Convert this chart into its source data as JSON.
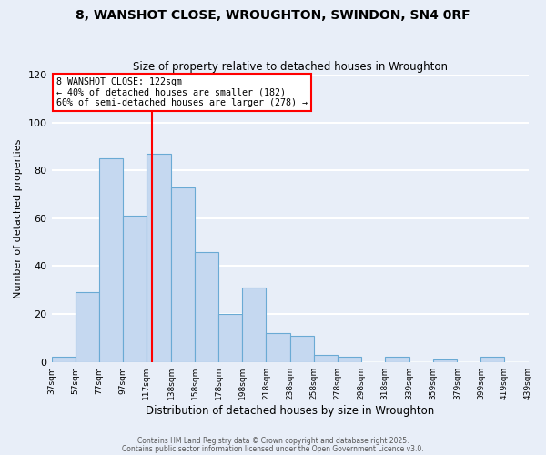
{
  "title": "8, WANSHOT CLOSE, WROUGHTON, SWINDON, SN4 0RF",
  "subtitle": "Size of property relative to detached houses in Wroughton",
  "xlabel": "Distribution of detached houses by size in Wroughton",
  "ylabel": "Number of detached properties",
  "bin_edges": [
    37,
    57,
    77,
    97,
    117,
    138,
    158,
    178,
    198,
    218,
    238,
    258,
    278,
    298,
    318,
    339,
    359,
    379,
    399,
    419,
    439
  ],
  "bar_heights": [
    2,
    29,
    85,
    61,
    87,
    73,
    46,
    20,
    31,
    12,
    11,
    3,
    2,
    0,
    2,
    0,
    1,
    0,
    2,
    0
  ],
  "bar_color": "#c5d8f0",
  "bar_edge_color": "#6aaad4",
  "vline_x": 122,
  "vline_color": "red",
  "annotation_title": "8 WANSHOT CLOSE: 122sqm",
  "annotation_line1": "← 40% of detached houses are smaller (182)",
  "annotation_line2": "60% of semi-detached houses are larger (278) →",
  "annotation_box_color": "white",
  "annotation_box_edge": "red",
  "ylim": [
    0,
    120
  ],
  "yticks": [
    0,
    20,
    40,
    60,
    80,
    100,
    120
  ],
  "tick_labels": [
    "37sqm",
    "57sqm",
    "77sqm",
    "97sqm",
    "117sqm",
    "138sqm",
    "158sqm",
    "178sqm",
    "198sqm",
    "218sqm",
    "238sqm",
    "258sqm",
    "278sqm",
    "298sqm",
    "318sqm",
    "339sqm",
    "359sqm",
    "379sqm",
    "399sqm",
    "419sqm",
    "439sqm"
  ],
  "footer1": "Contains HM Land Registry data © Crown copyright and database right 2025.",
  "footer2": "Contains public sector information licensed under the Open Government Licence v3.0.",
  "bg_color": "#e8eef8",
  "plot_bg_color": "#e8eef8",
  "grid_color": "white"
}
